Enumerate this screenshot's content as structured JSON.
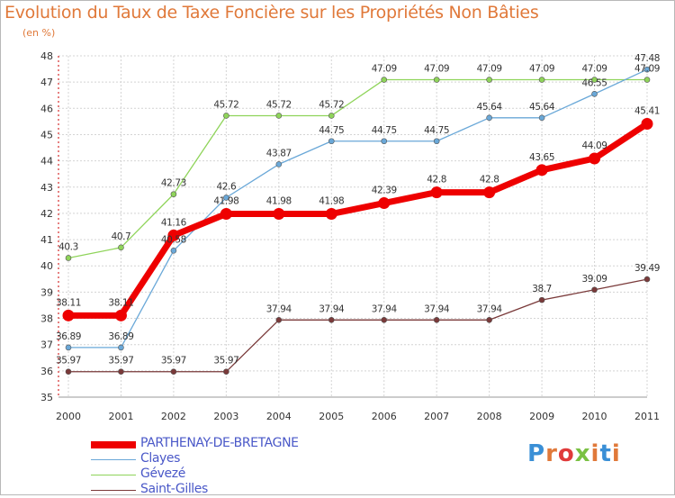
{
  "page": {
    "title": "Evolution du Taux de Taxe Foncière sur les Propriétés Non Bâties",
    "unit": "(en %)"
  },
  "logo": {
    "text": "Proxiti",
    "colors": [
      "#3a8fd6",
      "#e0793a",
      "#e03a3a",
      "#7ac143",
      "#e0793a",
      "#3a8fd6",
      "#e0793a"
    ]
  },
  "chart_data": {
    "type": "line",
    "x": [
      2000,
      2001,
      2002,
      2003,
      2004,
      2005,
      2006,
      2007,
      2008,
      2009,
      2010,
      2011
    ],
    "ylim": [
      35,
      48
    ],
    "yticks": [
      35,
      36,
      37,
      38,
      39,
      40,
      41,
      42,
      43,
      44,
      45,
      46,
      47,
      48
    ],
    "grid": true,
    "legend_position": "bottom-left",
    "series": [
      {
        "name": "Gévezé",
        "color": "#8fd45a",
        "width": 1.3,
        "marker": 3,
        "values": [
          40.3,
          40.7,
          42.73,
          45.72,
          45.72,
          45.72,
          47.09,
          47.09,
          47.09,
          47.09,
          47.09,
          47.09
        ],
        "labels": [
          "40.3",
          "40.7",
          "42.73",
          "45.72",
          "45.72",
          "45.72",
          "47.09",
          "47.09",
          "47.09",
          "47.09",
          "47.09",
          "47.09"
        ]
      },
      {
        "name": "Clayes",
        "color": "#6aa8d8",
        "width": 1.3,
        "marker": 3,
        "values": [
          36.89,
          36.89,
          40.58,
          42.6,
          43.87,
          44.75,
          44.75,
          44.75,
          45.64,
          45.64,
          46.55,
          47.48
        ],
        "labels": [
          "36.89",
          "36.89",
          "40.58",
          "42.6",
          "43.87",
          "44.75",
          "44.75",
          "44.75",
          "45.64",
          "45.64",
          "46.55",
          "47.48"
        ]
      },
      {
        "name": "Saint-Gilles",
        "color": "#7a3a3a",
        "width": 1.3,
        "marker": 3,
        "values": [
          35.97,
          35.97,
          35.97,
          35.97,
          37.94,
          37.94,
          37.94,
          37.94,
          37.94,
          38.7,
          39.09,
          39.49
        ],
        "labels": [
          "35.97",
          "35.97",
          "35.97",
          "35.97",
          "37.94",
          "37.94",
          "37.94",
          "37.94",
          "37.94",
          "38.7",
          "39.09",
          "39.49"
        ]
      },
      {
        "name": "PARTHENAY-DE-BRETAGNE",
        "color": "#ee0000",
        "width": 7,
        "marker": 6.5,
        "values": [
          38.11,
          38.11,
          41.16,
          41.98,
          41.98,
          41.98,
          42.39,
          42.8,
          42.8,
          43.65,
          44.09,
          45.41
        ],
        "labels": [
          "38.11",
          "38.11",
          "41.16",
          "41.98",
          "41.98",
          "41.98",
          "42.39",
          "42.8",
          "42.8",
          "43.65",
          "44.09",
          "45.41"
        ]
      }
    ],
    "legend_order": [
      "PARTHENAY-DE-BRETAGNE",
      "Clayes",
      "Gévezé",
      "Saint-Gilles"
    ]
  }
}
